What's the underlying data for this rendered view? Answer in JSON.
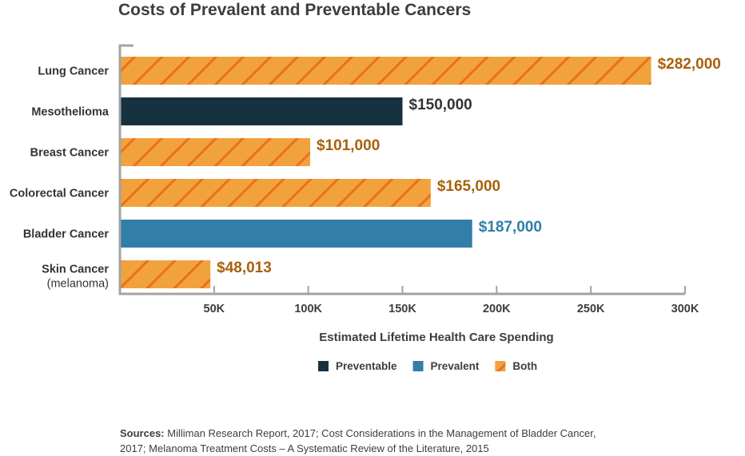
{
  "chart_data": {
    "type": "bar",
    "orientation": "horizontal",
    "title": "Costs of Prevalent and Preventable Cancers",
    "xlabel": "Estimated Lifetime Health Care Spending",
    "ylabel": "",
    "xlim": [
      0,
      300000
    ],
    "x_ticks": [
      50000,
      100000,
      150000,
      200000,
      250000,
      300000
    ],
    "x_tick_labels": [
      "50K",
      "100K",
      "150K",
      "200K",
      "250K",
      "300K"
    ],
    "grid": false,
    "legend_position": "bottom",
    "categories": [
      {
        "label": "Lung Cancer",
        "sublabel": ""
      },
      {
        "label": "Mesothelioma",
        "sublabel": ""
      },
      {
        "label": "Breast Cancer",
        "sublabel": ""
      },
      {
        "label": "Colorectal Cancer",
        "sublabel": ""
      },
      {
        "label": "Bladder Cancer",
        "sublabel": ""
      },
      {
        "label": "Skin Cancer",
        "sublabel": "(melanoma)"
      }
    ],
    "values": [
      282000,
      150000,
      101000,
      165000,
      187000,
      48013
    ],
    "data_labels": [
      "$282,000",
      "$150,000",
      "$101,000",
      "$165,000",
      "$187,000",
      "$48,013"
    ],
    "groups": [
      "Both",
      "Preventable",
      "Both",
      "Both",
      "Prevalent",
      "Both"
    ],
    "legend": [
      {
        "name": "Preventable",
        "color": "#163240",
        "pattern": "solid"
      },
      {
        "name": "Prevalent",
        "color": "#317ea8",
        "pattern": "solid"
      },
      {
        "name": "Both",
        "color": "#f2a23c",
        "stripe_color": "#e8711e",
        "pattern": "diagonal-stripes"
      }
    ],
    "label_colors": {
      "Preventable": "#333333",
      "Prevalent": "#317ea8",
      "Both": "#a8610b"
    }
  },
  "sources": {
    "label": "Sources:",
    "text": "Milliman Research Report, 2017; Cost Considerations in the Management of Bladder Cancer, 2017; Melanoma Treatment Costs – A Systematic Review of the Literature, 2015"
  }
}
